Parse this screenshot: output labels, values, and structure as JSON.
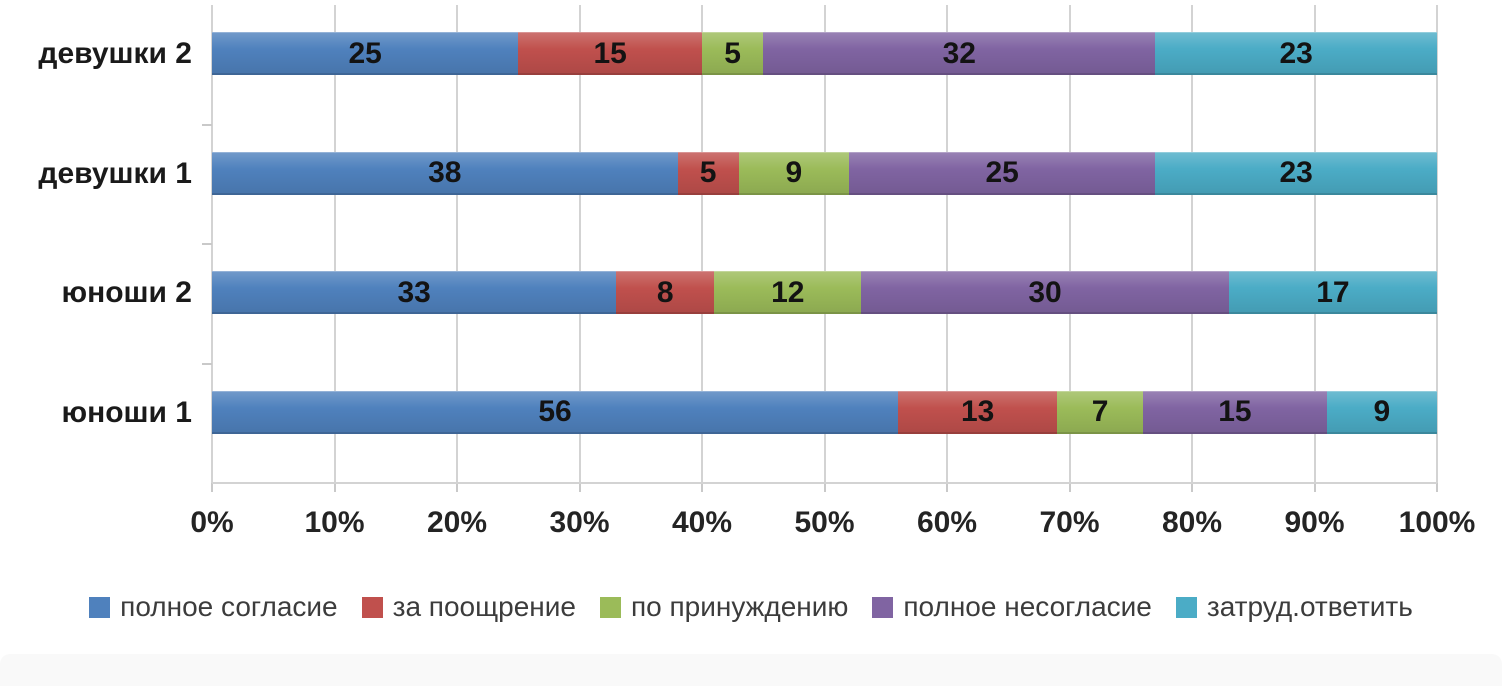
{
  "chart_data": {
    "type": "bar",
    "orientation": "horizontal",
    "stacked": true,
    "stacked_total": 100,
    "title": "",
    "xlabel": "",
    "ylabel": "",
    "grid": true,
    "data_labels": true,
    "legend_position": "bottom",
    "categories": [
      "девушки 2",
      "девушки 1",
      "юноши 2",
      "юноши 1"
    ],
    "series": [
      {
        "name": "полное согласие",
        "color": "#4F81BD",
        "values": [
          25,
          38,
          33,
          56
        ]
      },
      {
        "name": "за поощрение",
        "color": "#C0504D",
        "values": [
          15,
          5,
          8,
          13
        ]
      },
      {
        "name": "по принуждению",
        "color": "#9BBB59",
        "values": [
          5,
          9,
          12,
          7
        ]
      },
      {
        "name": "полное несогласие",
        "color": "#8064A2",
        "values": [
          32,
          25,
          30,
          15
        ]
      },
      {
        "name": "затруд.ответить",
        "color": "#4BACC6",
        "values": [
          23,
          23,
          17,
          9
        ]
      }
    ],
    "x_axis": {
      "min": 0,
      "max": 100,
      "ticks": [
        "0%",
        "10%",
        "20%",
        "30%",
        "40%",
        "50%",
        "60%",
        "70%",
        "80%",
        "90%",
        "100%"
      ]
    }
  },
  "ui_colors": {
    "gridline": "#d3d3d3",
    "value_label_text": "#131313",
    "category_label_text": "#1a1a1a",
    "axis_label_text": "#242424",
    "legend_text": "#3c3c3c",
    "bottom_band": "#f9f9f9",
    "background": "#ffffff"
  }
}
